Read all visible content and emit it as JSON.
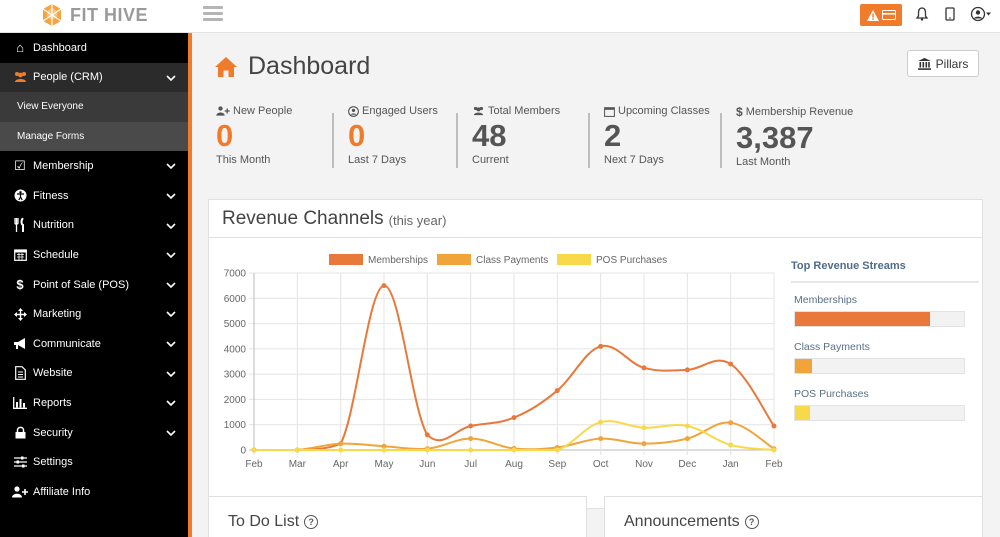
{
  "brand": {
    "name": "FIT HIVE"
  },
  "sidebar": {
    "items": [
      {
        "label": "Dashboard",
        "icon": "home-icon",
        "expandable": false
      },
      {
        "label": "People (CRM)",
        "icon": "users-icon",
        "expandable": true,
        "active": true,
        "subitems": [
          {
            "label": "View Everyone"
          },
          {
            "label": "Manage Forms"
          }
        ]
      },
      {
        "label": "Membership",
        "icon": "check-square-icon",
        "expandable": true
      },
      {
        "label": "Fitness",
        "icon": "accessibility-icon",
        "expandable": true
      },
      {
        "label": "Nutrition",
        "icon": "utensils-icon",
        "expandable": true
      },
      {
        "label": "Schedule",
        "icon": "calendar-icon",
        "expandable": true
      },
      {
        "label": "Point of Sale (POS)",
        "icon": "dollar-icon",
        "expandable": true
      },
      {
        "label": "Marketing",
        "icon": "arrows-icon",
        "expandable": true
      },
      {
        "label": "Communicate",
        "icon": "megaphone-icon",
        "expandable": true
      },
      {
        "label": "Website",
        "icon": "file-icon",
        "expandable": true
      },
      {
        "label": "Reports",
        "icon": "bar-chart-icon",
        "expandable": true
      },
      {
        "label": "Security",
        "icon": "lock-icon",
        "expandable": true
      },
      {
        "label": "Settings",
        "icon": "sliders-icon",
        "expandable": false
      },
      {
        "label": "Affiliate Info",
        "icon": "user-plus-icon",
        "expandable": false
      }
    ]
  },
  "header": {
    "title": "Dashboard",
    "pillars_label": "Pillars"
  },
  "stats": [
    {
      "label": "New People",
      "value": "0",
      "sub": "This Month",
      "icon": "user-plus-icon",
      "color": "orange"
    },
    {
      "label": "Engaged Users",
      "value": "0",
      "sub": "Last 7 Days",
      "icon": "user-circle-icon",
      "color": "orange"
    },
    {
      "label": "Total Members",
      "value": "48",
      "sub": "Current",
      "icon": "users-icon",
      "color": "dark"
    },
    {
      "label": "Upcoming Classes",
      "value": "2",
      "sub": "Next 7 Days",
      "icon": "calendar-icon",
      "color": "dark"
    },
    {
      "label": "Membership Revenue",
      "value": "3,387",
      "sub": "Last Month",
      "icon": "dollar-icon",
      "color": "dark"
    }
  ],
  "revenue": {
    "title": "Revenue Channels",
    "subtitle": "(this year)",
    "top_streams": {
      "title": "Top Revenue Streams",
      "items": [
        {
          "label": "Memberships",
          "fraction": 0.8,
          "color": "#e8793a"
        },
        {
          "label": "Class Payments",
          "fraction": 0.1,
          "color": "#f0a43a"
        },
        {
          "label": "POS Purchases",
          "fraction": 0.09,
          "color": "#f7d94a"
        }
      ]
    }
  },
  "chart_data": {
    "type": "line",
    "categories": [
      "Feb",
      "Mar",
      "Apr",
      "May",
      "Jun",
      "Jul",
      "Aug",
      "Sep",
      "Oct",
      "Nov",
      "Dec",
      "Jan",
      "Feb"
    ],
    "yticks": [
      "0",
      "1000",
      "2000",
      "3000",
      "4000",
      "5000",
      "6000",
      "7000"
    ],
    "ylim": [
      0,
      7000
    ],
    "legend_position": "top",
    "grid": true,
    "series": [
      {
        "name": "Memberships",
        "color": "#e8793a",
        "values": [
          0,
          0,
          250,
          6500,
          600,
          950,
          1280,
          2350,
          4100,
          3250,
          3170,
          3400,
          950
        ]
      },
      {
        "name": "Class Payments",
        "color": "#f0a43a",
        "values": [
          0,
          0,
          250,
          150,
          50,
          450,
          60,
          100,
          450,
          250,
          450,
          1080,
          50
        ]
      },
      {
        "name": "POS Purchases",
        "color": "#f7d94a",
        "values": [
          0,
          0,
          0,
          0,
          0,
          0,
          0,
          0,
          1100,
          880,
          950,
          200,
          0
        ]
      }
    ]
  },
  "todo": {
    "title": "To Do List"
  },
  "announcements": {
    "title": "Announcements"
  }
}
